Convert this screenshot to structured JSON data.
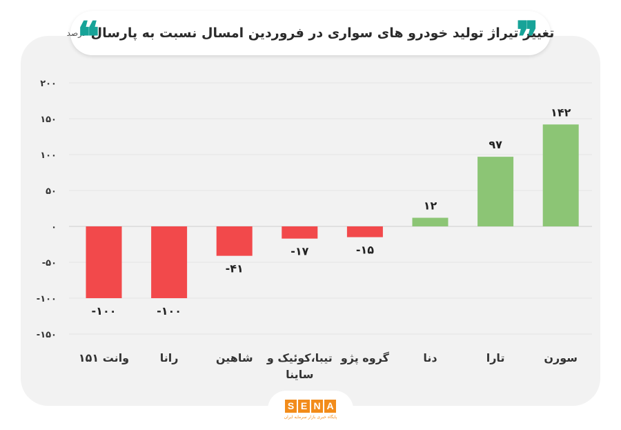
{
  "header": {
    "title": "تغییر تیراژ تولید خودرو های سواری در فروردین امسال نسبت به پارسال",
    "unit": "-درصد"
  },
  "logo": {
    "letters": [
      "S",
      "E",
      "N",
      "A"
    ],
    "subtitle": "پایگاه خبری بازار سرمایه ایران"
  },
  "colors": {
    "positive": "#8cc575",
    "negative": "#f2494b",
    "accent": "#17a398",
    "panel": "#f2f2f2"
  },
  "chart_data": {
    "type": "bar",
    "categories": [
      "وانت ۱۵۱",
      "رانا",
      "شاهین",
      "تیبا،کوئیک و ساینا",
      "گروه پژو",
      "دنا",
      "تارا",
      "سورن"
    ],
    "values": [
      -100,
      -100,
      -41,
      -17,
      -15,
      12,
      97,
      142
    ],
    "value_labels": [
      "-۱۰۰",
      "-۱۰۰",
      "-۴۱",
      "-۱۷",
      "-۱۵",
      "۱۲",
      "۹۷",
      "۱۴۲"
    ],
    "yticks": [
      200,
      150,
      100,
      50,
      0,
      -50,
      -100,
      -150
    ],
    "ytick_labels": [
      "۲۰۰",
      "۱۵۰",
      "۱۰۰",
      "۵۰",
      "۰",
      "-۵۰",
      "-۱۰۰",
      "-۱۵۰"
    ],
    "ylim": [
      -150,
      200
    ],
    "grid": true,
    "title": "تغییر تیراژ تولید خودرو های سواری در فروردین امسال نسبت به پارسال",
    "xlabel": "",
    "ylabel": ""
  }
}
